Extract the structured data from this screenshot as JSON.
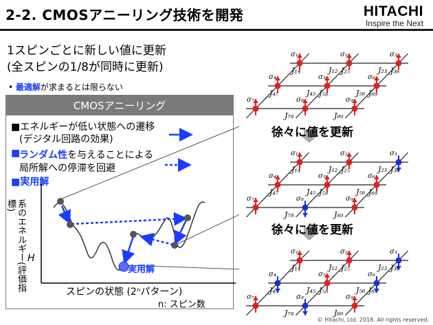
{
  "header": {
    "title": "2-2. CMOSアニーリング技術を開発",
    "logo": "HITACHI",
    "tagline": "Inspire the Next"
  },
  "lead": {
    "line1": "1スピンごとに新しい値に更新",
    "line2": "(全スピンの1/8が同時に更新)"
  },
  "bullet": {
    "highlight": "最適解",
    "rest": "が求まるとは限らない"
  },
  "panel": {
    "heading": "CMOSアニーリング",
    "points": [
      {
        "text": "エネルギーが低い状態への遷移"
      },
      {
        "text": "(デジタル回路の効果)"
      },
      {
        "text": "ランダム性を与えることによる",
        "highlight": "ランダム性"
      },
      {
        "text": "局所解への停滞を回避"
      },
      {
        "text": "実用解"
      }
    ],
    "ylabel_line1": "系のエネルギー",
    "ylabel_line2": "(評価指標)",
    "ylabel_var": "H",
    "xlabel": "スピンの状態 (2ⁿパターン)",
    "note": "n: スピン数",
    "solution_label": "実用解"
  },
  "lattice": {
    "update_label": "徐々に値を更新",
    "spin_labels": [
      "σ₁",
      "σ₂",
      "σ₃",
      "σ₄",
      "σ₅",
      "σ₆",
      "σ₇",
      "σ₈",
      "σ₉"
    ],
    "coupling_labels": [
      "J₁₂",
      "J₂₃",
      "J₁₄",
      "J₂₅",
      "J₃₆",
      "J₄₅",
      "J₅₆",
      "J₄₇",
      "J₅₈",
      "J₆₉",
      "J₇₈",
      "J₈₉"
    ],
    "stages": [
      {
        "spins": [
          "up",
          "up",
          "up",
          "up",
          "up",
          "up",
          "up",
          "up",
          "up"
        ]
      },
      {
        "spins": [
          "up",
          "up",
          "down",
          "up",
          "up",
          "up",
          "up",
          "down",
          "up"
        ]
      },
      {
        "spins": [
          "up",
          "up",
          "down",
          "down",
          "up",
          "down",
          "up",
          "down",
          "up"
        ]
      }
    ]
  },
  "footer": {
    "copyright": "© Hitachi, Ltd. 2018. All rights reserved."
  },
  "colors": {
    "up_spin": "#e02020",
    "down_spin": "#1a2fd6",
    "accent_blue": "#1a3cff",
    "panel_header": "#7a7a7a"
  }
}
